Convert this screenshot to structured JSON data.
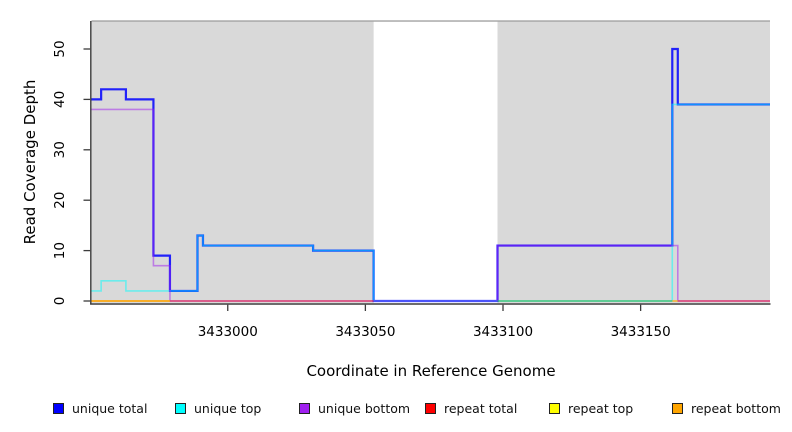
{
  "chart_data": {
    "type": "line",
    "step": true,
    "title": "",
    "xlabel": "Coordinate in Reference Genome",
    "ylabel": "Read Coverage Depth",
    "xlim": [
      3432950.5,
      3433197
    ],
    "ylim": [
      0,
      55.5
    ],
    "x_ticks": [
      3433000,
      3433050,
      3433100,
      3433150
    ],
    "y_ticks": [
      0,
      10,
      20,
      30,
      40,
      50
    ],
    "grid": false,
    "plot_bg": "#d9d9d9",
    "gap_region": {
      "x0": 3433053,
      "x1": 3433098,
      "color": "#ffffff"
    },
    "legend_position": "bottom",
    "series": [
      {
        "name": "unique total",
        "color": "#0000ff",
        "opacity": 0.85,
        "width": 2.2,
        "paths": [
          [
            [
              3432950.5,
              40
            ],
            [
              3432954,
              42
            ],
            [
              3432963,
              40
            ],
            [
              3432973,
              9
            ],
            [
              3432979,
              2
            ],
            [
              3432989,
              13
            ],
            [
              3432991,
              11
            ],
            [
              3433031,
              10
            ],
            [
              3433053,
              0
            ],
            [
              3433098,
              11
            ],
            [
              3433161.5,
              50
            ],
            [
              3433163.5,
              39
            ],
            [
              3433197,
              39
            ]
          ]
        ]
      },
      {
        "name": "unique top",
        "color": "#00ffff",
        "opacity": 0.5,
        "width": 1.6,
        "paths": [
          [
            [
              3432950.5,
              2
            ],
            [
              3432954,
              4
            ],
            [
              3432963,
              2
            ],
            [
              3432989,
              13
            ],
            [
              3432991,
              11
            ],
            [
              3433031,
              10
            ],
            [
              3433053,
              0
            ],
            [
              3433161.5,
              39
            ],
            [
              3433197,
              39
            ]
          ]
        ]
      },
      {
        "name": "unique bottom",
        "color": "#a020f0",
        "opacity": 0.5,
        "width": 1.6,
        "paths": [
          [
            [
              3432950.5,
              38
            ],
            [
              3432973,
              7
            ],
            [
              3432979,
              0
            ],
            [
              3433098,
              11
            ],
            [
              3433163.5,
              0
            ],
            [
              3433197,
              0
            ]
          ]
        ]
      },
      {
        "name": "repeat total",
        "color": "#ff0000",
        "opacity": 0.5,
        "width": 1.5,
        "paths": [
          [
            [
              3432950.5,
              0
            ],
            [
              3433053,
              0
            ]
          ],
          [
            [
              3433163.5,
              0
            ],
            [
              3433197,
              0
            ]
          ]
        ]
      },
      {
        "name": "repeat top",
        "color": "#ffff00",
        "opacity": 0.55,
        "width": 1.5,
        "paths": [
          [
            [
              3432950.5,
              0
            ],
            [
              3432979,
              0
            ]
          ],
          {
            "stroke": "#22aa22",
            "points": [
              [
                3433098,
                0
              ],
              [
                3433161.5,
                0
              ]
            ]
          }
        ]
      },
      {
        "name": "repeat bottom",
        "color": "#ffa500",
        "opacity": 0.75,
        "width": 1.6,
        "paths": [
          [
            [
              3432950.5,
              0
            ],
            [
              3432979,
              0
            ]
          ],
          [
            [
              3433161.5,
              0
            ],
            [
              3433163.5,
              0
            ]
          ]
        ]
      }
    ],
    "legend": [
      {
        "label": "unique total",
        "color": "#0000ff"
      },
      {
        "label": "unique top",
        "color": "#00ffff"
      },
      {
        "label": "unique bottom",
        "color": "#a020f0"
      },
      {
        "label": "repeat total",
        "color": "#ff0000"
      },
      {
        "label": "repeat top",
        "color": "#ffff00"
      },
      {
        "label": "repeat bottom",
        "color": "#ffa500"
      }
    ]
  }
}
